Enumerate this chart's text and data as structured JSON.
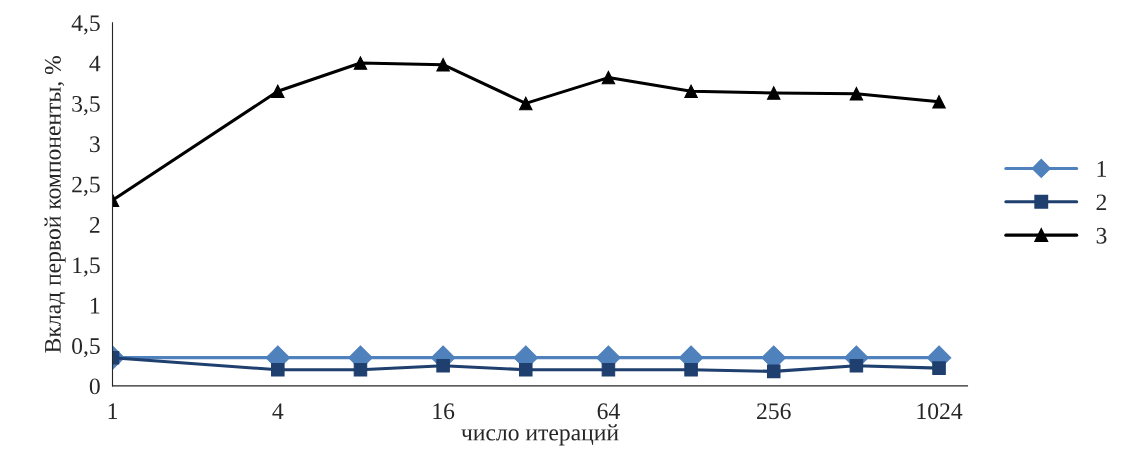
{
  "chart_data": {
    "type": "line",
    "xlabel": "число итераций",
    "ylabel": "Вклад первой компоненты, %",
    "x": [
      1,
      4,
      8,
      16,
      32,
      64,
      128,
      256,
      512,
      1024
    ],
    "series": [
      {
        "name": "1",
        "color": "#4f81bd",
        "marker": "diamond",
        "values": [
          0.35,
          0.35,
          0.35,
          0.35,
          0.35,
          0.35,
          0.35,
          0.35,
          0.35,
          0.35
        ]
      },
      {
        "name": "2",
        "color": "#1f3f6e",
        "marker": "square",
        "values": [
          0.35,
          0.2,
          0.2,
          0.25,
          0.2,
          0.2,
          0.2,
          0.18,
          0.25,
          0.22
        ]
      },
      {
        "name": "3",
        "color": "#000000",
        "marker": "triangle",
        "values": [
          2.3,
          3.65,
          4.0,
          3.98,
          3.5,
          3.82,
          3.65,
          3.63,
          3.62,
          3.52
        ]
      }
    ],
    "log": "x",
    "xlim": [
      1,
      1300
    ],
    "xticks": [
      1,
      4,
      16,
      64,
      256,
      1024
    ],
    "ylim": [
      0,
      4.5
    ],
    "yticks": [
      0,
      {
        "value": 0.5,
        "label": "0,5"
      },
      1,
      {
        "value": 1.5,
        "label": "1,5"
      },
      2,
      {
        "value": 2.5,
        "label": "2,5"
      },
      3,
      {
        "value": 3.5,
        "label": "3,5"
      },
      4,
      {
        "value": 4.5,
        "label": "4,5"
      }
    ],
    "grid": false,
    "legend": "right"
  }
}
